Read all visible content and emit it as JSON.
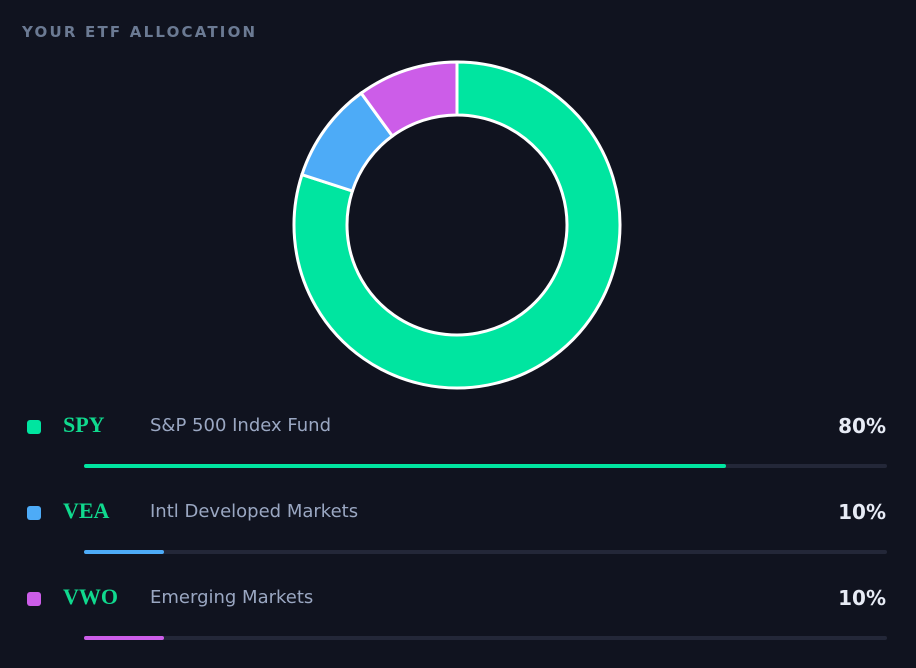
{
  "header": {
    "title": "YOUR ETF ALLOCATION"
  },
  "chart_data": {
    "type": "pie",
    "style": "donut",
    "categories": [
      "SPY",
      "VEA",
      "VWO"
    ],
    "values": [
      80,
      10,
      10
    ],
    "colors": [
      "#00e5a0",
      "#4dabf7",
      "#cc5de8"
    ]
  },
  "holdings": [
    {
      "ticker": "SPY",
      "name": "S&P 500 Index Fund",
      "percent_label": "80%",
      "percent": 80,
      "color": "#00e5a0"
    },
    {
      "ticker": "VEA",
      "name": "Intl Developed Markets",
      "percent_label": "10%",
      "percent": 10,
      "color": "#4dabf7"
    },
    {
      "ticker": "VWO",
      "name": "Emerging Markets",
      "percent_label": "10%",
      "percent": 10,
      "color": "#cc5de8"
    }
  ]
}
